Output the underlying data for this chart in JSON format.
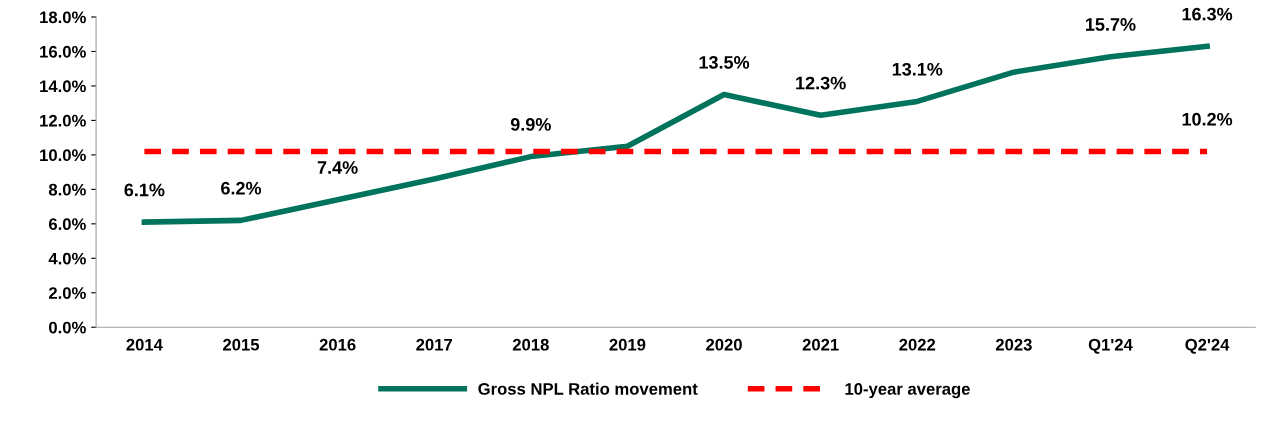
{
  "chart_data": {
    "type": "line",
    "categories": [
      "2014",
      "2015",
      "2016",
      "2017",
      "2018",
      "2019",
      "2020",
      "2021",
      "2022",
      "2023",
      "Q1'24",
      "Q2'24"
    ],
    "series": [
      {
        "name": "Gross NPL Ratio movement",
        "color": "#00735c",
        "line_style": "solid",
        "values": [
          6.1,
          6.2,
          7.4,
          8.6,
          9.9,
          10.5,
          13.5,
          12.3,
          13.1,
          14.8,
          15.7,
          16.3
        ],
        "value_labels": [
          "6.1%",
          "6.2%",
          "7.4%",
          null,
          "9.9%",
          null,
          "13.5%",
          "12.3%",
          "13.1%",
          null,
          "15.7%",
          "16.3%"
        ]
      },
      {
        "name": "10-year average",
        "color": "#ff0000",
        "line_style": "dashed",
        "values": [
          10.2,
          10.2,
          10.2,
          10.2,
          10.2,
          10.2,
          10.2,
          10.2,
          10.2,
          10.2,
          10.2,
          10.2
        ],
        "value_labels": [
          null,
          null,
          null,
          null,
          null,
          null,
          null,
          null,
          null,
          null,
          null,
          "10.2%"
        ]
      }
    ],
    "ylim": [
      0,
      18
    ],
    "yticks": [
      {
        "value": 0,
        "label": "0.0%"
      },
      {
        "value": 2,
        "label": "2.0%"
      },
      {
        "value": 4,
        "label": "4.0%"
      },
      {
        "value": 6,
        "label": "6.0%"
      },
      {
        "value": 8,
        "label": "8.0%"
      },
      {
        "value": 10,
        "label": "10.0%"
      },
      {
        "value": 12,
        "label": "12.0%"
      },
      {
        "value": 14,
        "label": "14.0%"
      },
      {
        "value": 16,
        "label": "16.0%"
      },
      {
        "value": 18,
        "label": "18.0%"
      }
    ],
    "grid": false,
    "legend": "bottom",
    "marker": "none"
  }
}
